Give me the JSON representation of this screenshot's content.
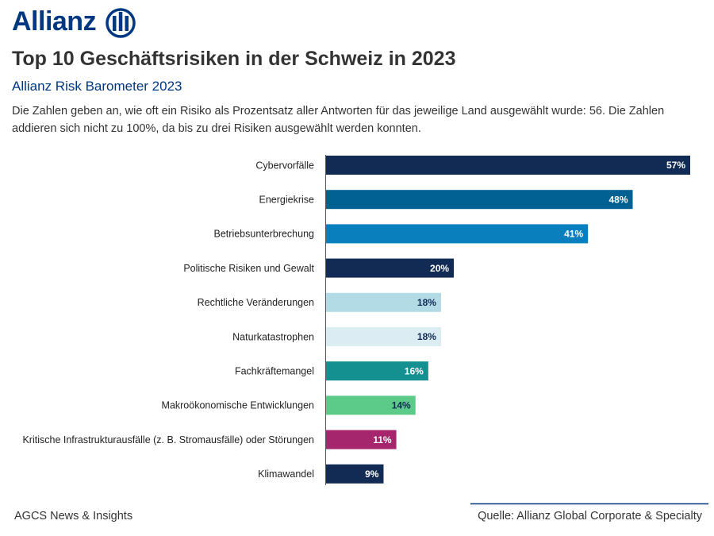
{
  "logo": "Allianz",
  "chart_data": {
    "type": "bar",
    "orientation": "horizontal",
    "title": "Top 10 Geschäftsrisiken in der Schweiz in 2023",
    "subtitle": "Allianz Risk Barometer 2023",
    "description": "Die Zahlen geben an, wie oft ein Risiko als Prozentsatz aller Antworten für das jeweilige Land ausgewählt wurde: 56. Die Zahlen addieren sich nicht zu 100%, da bis zu drei Risiken ausgewählt werden konnten.",
    "categories": [
      "Cybervorfälle",
      "Energiekrise",
      "Betriebsunterbrechung",
      "Politische Risiken und Gewalt",
      "Rechtliche Veränderungen",
      "Naturkatastrophen",
      "Fachkräftemangel",
      "Makroökonomische Entwicklungen",
      "Kritische Infrastrukturausfälle (z. B. Stromausfälle) oder Störungen",
      "Klimawandel"
    ],
    "values": [
      57,
      48,
      41,
      20,
      18,
      18,
      16,
      14,
      11,
      9
    ],
    "value_labels": [
      "57%",
      "48%",
      "41%",
      "20%",
      "18%",
      "18%",
      "16%",
      "14%",
      "11%",
      "9%"
    ],
    "colors": [
      "#122b54",
      "#006192",
      "#0a7fbd",
      "#122b54",
      "#b3dbe6",
      "#dcecf3",
      "#13908f",
      "#5ccb8a",
      "#a6266e",
      "#122b54"
    ],
    "footer_left": "AGCS News & Insights",
    "source": "Quelle: Allianz Global Corporate & Specialty"
  }
}
